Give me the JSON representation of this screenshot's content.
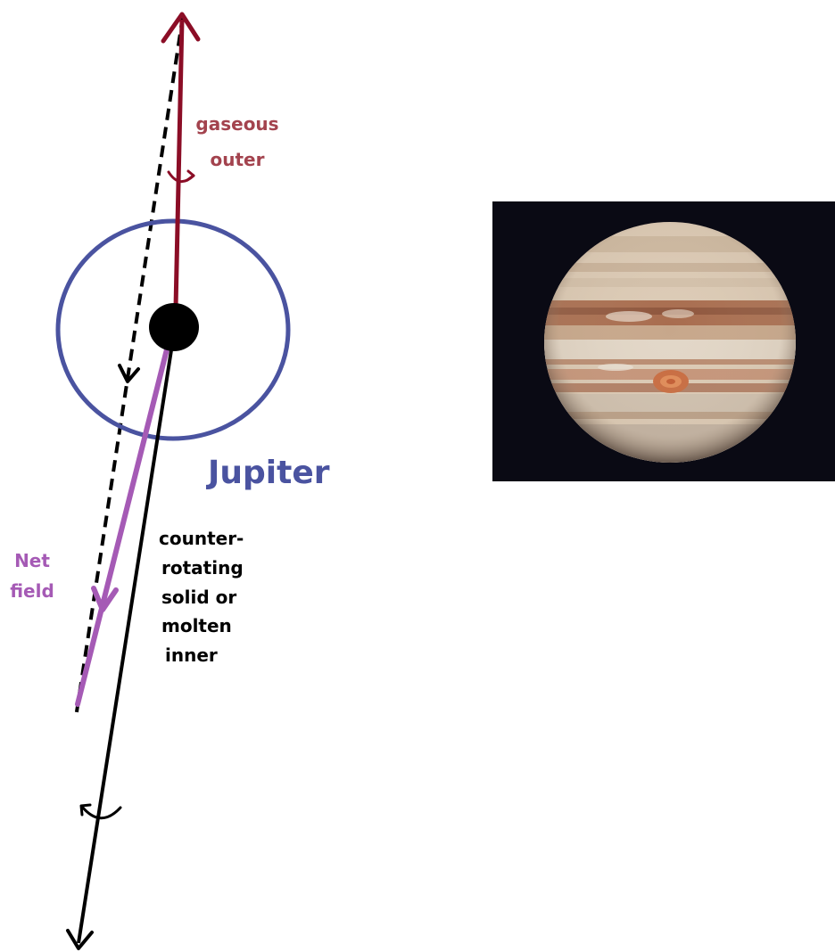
{
  "labels": {
    "gaseous_line1": "gaseous",
    "gaseous_line2": "outer",
    "planet_name": "Jupiter",
    "net_line1": "Net",
    "net_line2": "field",
    "inner_line1": "counter-",
    "inner_line2": "rotating",
    "inner_line3": "solid or",
    "inner_line4": "molten",
    "inner_line5": "inner"
  },
  "colors": {
    "outer_axis": "#8b0d26",
    "inner_axis": "#000000",
    "net_field": "#a55ab5",
    "planet_circle": "#4a53a0",
    "planet_label": "#4a53a0",
    "background": "#ffffff",
    "photo_background": "#0a0a14"
  },
  "photo": {
    "subject": "Jupiter photograph with Great Red Spot"
  }
}
